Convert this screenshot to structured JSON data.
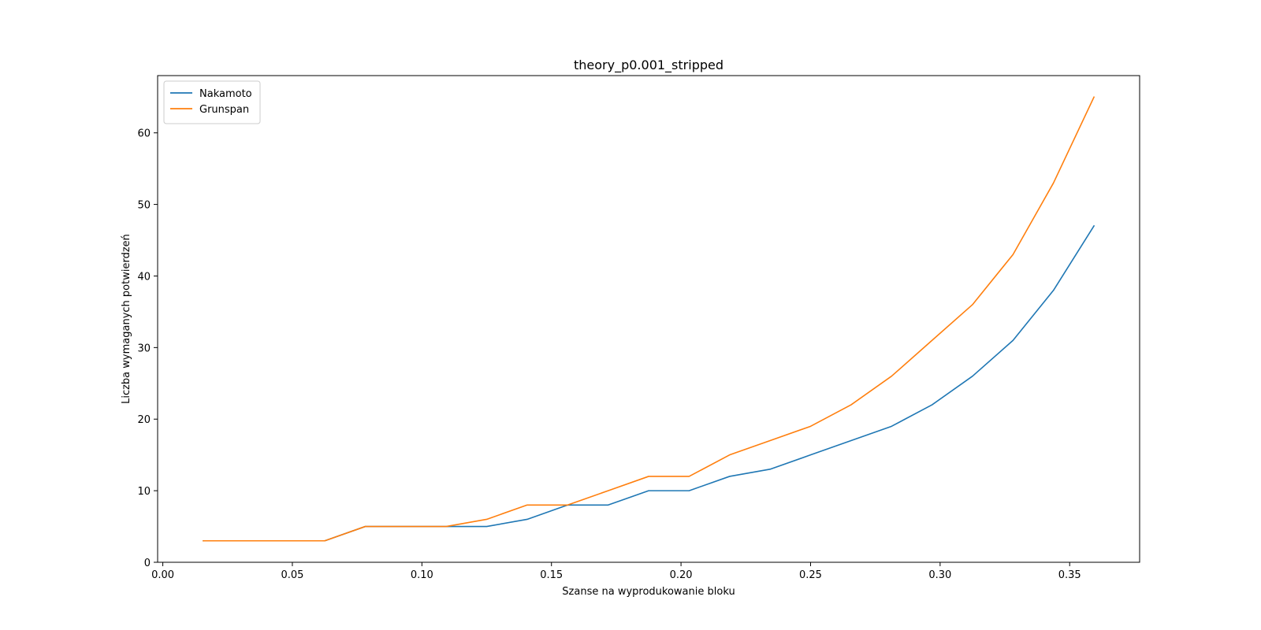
{
  "chart_data": {
    "type": "line",
    "title": "theory_p0.001_stripped",
    "xlabel": "Szanse na wyprodukowanie bloku",
    "ylabel": "Liczba wymaganych potwierdzeń",
    "xlim": [
      -0.002,
      0.377
    ],
    "ylim": [
      0,
      68
    ],
    "xticks": [
      0.0,
      0.05,
      0.1,
      0.15,
      0.2,
      0.25,
      0.3,
      0.35
    ],
    "xtick_labels": [
      "0.00",
      "0.05",
      "0.10",
      "0.15",
      "0.20",
      "0.25",
      "0.30",
      "0.35"
    ],
    "yticks": [
      0,
      10,
      20,
      30,
      40,
      50,
      60
    ],
    "ytick_labels": [
      "0",
      "10",
      "20",
      "30",
      "40",
      "50",
      "60"
    ],
    "grid": false,
    "legend_position": "top-left",
    "x": [
      0.015625,
      0.03125,
      0.046875,
      0.0625,
      0.078125,
      0.09375,
      0.109375,
      0.125,
      0.140625,
      0.15625,
      0.171875,
      0.1875,
      0.203125,
      0.21875,
      0.234375,
      0.25,
      0.265625,
      0.28125,
      0.296875,
      0.3125,
      0.328125,
      0.34375,
      0.359375
    ],
    "series": [
      {
        "name": "Nakamoto",
        "color": "#1f77b4",
        "values": [
          3,
          3,
          3,
          3,
          5,
          5,
          5,
          5,
          6,
          8,
          8,
          10,
          10,
          12,
          13,
          15,
          17,
          19,
          22,
          26,
          31,
          38,
          47
        ]
      },
      {
        "name": "Grunspan",
        "color": "#ff7f0e",
        "values": [
          3,
          3,
          3,
          3,
          5,
          5,
          5,
          6,
          8,
          8,
          10,
          12,
          12,
          15,
          17,
          19,
          22,
          26,
          31,
          36,
          43,
          53,
          65
        ]
      }
    ]
  }
}
